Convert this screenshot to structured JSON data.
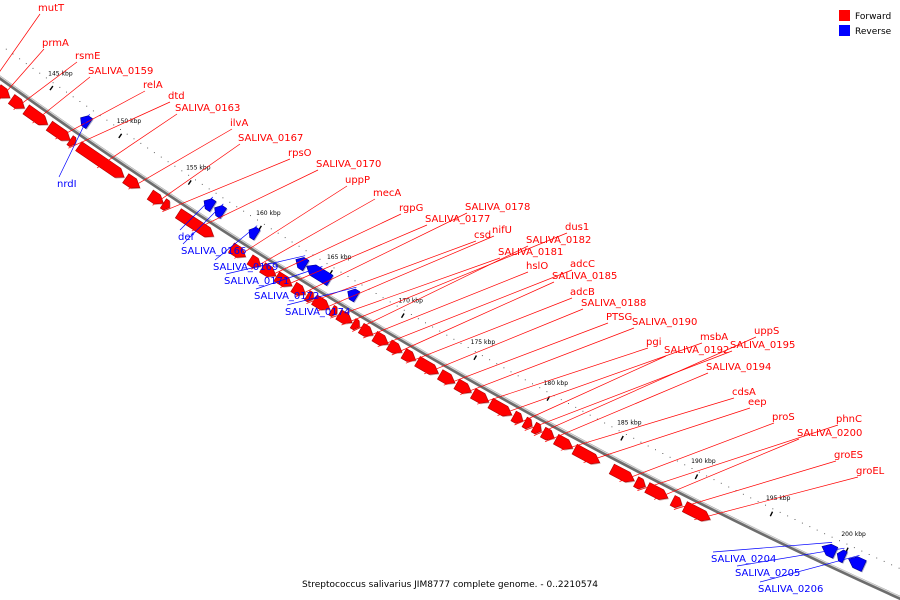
{
  "legend": {
    "forward_label": "Forward",
    "reverse_label": "Reverse",
    "forward_color": "#ff0000",
    "reverse_color": "#0000ff"
  },
  "caption": "Streptococcus salivarius JIM8777 complete genome. - 0..2210574",
  "tick_labels": [
    "145 kbp",
    "150 kbp",
    "155 kbp",
    "160 kbp",
    "165 kbp",
    "170 kbp",
    "175 kbp",
    "180 kbp",
    "185 kbp",
    "190 kbp",
    "195 kbp",
    "200 kbp"
  ],
  "forward_genes": [
    "mutT",
    "prmA",
    "rsmE",
    "SALIVA_0159",
    "relA",
    "dtd",
    "SALIVA_0163",
    "ilvA",
    "SALIVA_0167",
    "rpsO",
    "SALIVA_0170",
    "uppP",
    "mecA",
    "rgpG",
    "SALIVA_0177",
    "SALIVA_0178",
    "csd",
    "nifU",
    "SALIVA_0181",
    "dus1",
    "SALIVA_0182",
    "hslO",
    "adcC",
    "SALIVA_0185",
    "adcB",
    "SALIVA_0188",
    "PTSG",
    "SALIVA_0190",
    "pgi",
    "msbA",
    "SALIVA_0192",
    "SALIVA_0195",
    "uppS",
    "SALIVA_0194",
    "cdsA",
    "eep",
    "proS",
    "phnC",
    "SALIVA_0200",
    "groES",
    "groEL"
  ],
  "reverse_genes": [
    "nrdI",
    "def",
    "SALIVA_0166",
    "SALIVA_0169",
    "SALIVA_0171",
    "SALIVA_0172",
    "SALIVA_0174",
    "SALIVA_0204",
    "SALIVA_0205",
    "SALIVA_0206"
  ]
}
